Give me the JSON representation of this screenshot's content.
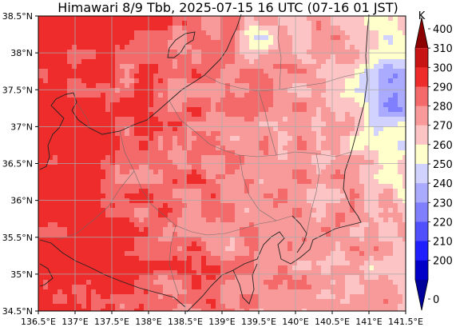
{
  "title": "Himawari 8/9 Tbb, 2025-07-15 16 UTC (07-16 01 JST)",
  "map": {
    "lon_range": [
      136.5,
      141.5
    ],
    "lat_range": [
      34.5,
      38.5
    ],
    "lon_ticks": [
      "136.5°E",
      "137°E",
      "137.5°E",
      "138°E",
      "138.5°E",
      "139°E",
      "139.5°E",
      "140°E",
      "140.5°E",
      "141°E",
      "141.5°E"
    ],
    "lat_ticks": [
      "38.5°N",
      "38°N",
      "37.5°N",
      "37°N",
      "36.5°N",
      "36°N",
      "35.5°N",
      "35°N",
      "34.5°N"
    ],
    "grid": true,
    "colorbar": {
      "unit": "K",
      "levels": [
        "400",
        "310",
        "300",
        "290",
        "280",
        "270",
        "260",
        "250",
        "240",
        "230",
        "220",
        "210",
        "200",
        "0"
      ],
      "colors": [
        "#8b0000",
        "#c81414",
        "#ee2c2c",
        "#f46a6a",
        "#f89a9a",
        "#fcc4c4",
        "#ffffcc",
        "#d2d2ff",
        "#aaaaff",
        "#8080ff",
        "#5050ff",
        "#2020ff",
        "#0000c8",
        "#00009a"
      ]
    }
  }
}
